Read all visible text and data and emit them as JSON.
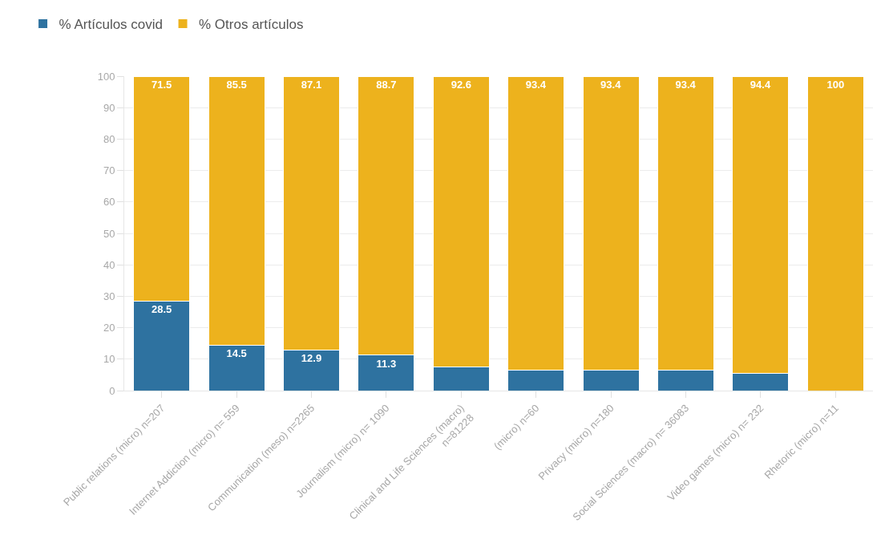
{
  "chart_data": {
    "type": "bar",
    "stacked": true,
    "legend": "top left",
    "grid": "y",
    "categories": [
      "Public relations (micro) n=207",
      "Internet Addiction (micro) n= 559",
      "Communication (meso) n=2265",
      "Journalism (micro) n= 1090",
      "Clinical and Life Sciences (macro)\nn=81228",
      "(micro) n=60",
      "Privacy (micro) n=180",
      "Social Sciences (macro) n= 36083",
      "Video games (micro) n= 232",
      "Rhetoric (micro) n=11"
    ],
    "series": [
      {
        "name": "% Artículos covid",
        "color": "#2e72a0",
        "values": [
          28.5,
          14.5,
          12.9,
          11.3,
          7.4,
          6.6,
          6.6,
          6.6,
          5.6,
          0
        ],
        "value_labels": [
          "28.5",
          "14.5",
          "12.9",
          "11.3",
          null,
          null,
          null,
          null,
          null,
          null
        ]
      },
      {
        "name": "% Otros artículos",
        "color": "#edb21d",
        "values": [
          71.5,
          85.5,
          87.1,
          88.7,
          92.6,
          93.4,
          93.4,
          93.4,
          94.4,
          100
        ],
        "value_labels": [
          "71.5",
          "85.5",
          "87.1",
          "88.7",
          "92.6",
          "93.4",
          "93.4",
          "93.4",
          "94.4",
          "100"
        ]
      }
    ],
    "ylim": [
      0,
      100
    ],
    "yticks": [
      0,
      10,
      20,
      30,
      40,
      50,
      60,
      70,
      80,
      90,
      100
    ]
  }
}
